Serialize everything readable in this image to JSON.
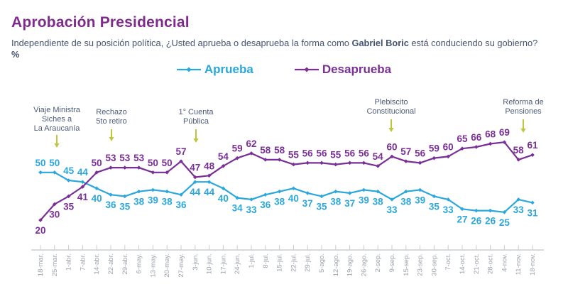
{
  "header": {
    "title": "Aprobación Presidencial",
    "subtitle": {
      "prefix": "Independiente de su posición política, ¿Usted aprueba o desaprueba la forma como ",
      "bold_name": "Gabriel Boric",
      "middle": " está conduciendo su gobierno? ",
      "percent_bold": "%"
    }
  },
  "colors": {
    "aprueba": "#2ba7dc",
    "desaprueba": "#7a2f96",
    "title": "#7f2a8d",
    "subtitle_text": "#44536e",
    "annotation_text": "#4d5c75",
    "arrow": "#bcc73e",
    "axis": "#c9cdd2",
    "axis_label": "#9ba2ac"
  },
  "chart_data": {
    "type": "line",
    "x": [
      "18-mar.",
      "25-mar.",
      "1-abr.",
      "7-abr.",
      "14-abr.",
      "22-abr.",
      "29-abr.",
      "6-may.",
      "13-may.",
      "20-may.",
      "27-may.",
      "3-jun.",
      "10-jun.",
      "17-jun.",
      "24-jun.",
      "1-jul.",
      "8-jul.",
      "15-jul.",
      "22-jul.",
      "29-jul.",
      "5-ago.",
      "12-ago.",
      "19-ago.",
      "26-ago.",
      "2-sep.",
      "9-sep.",
      "15-sep.",
      "23-sep.",
      "30-sep.",
      "7-oct.",
      "14-oct.",
      "21-oct.",
      "28-oct.",
      "4-nov.",
      "11-nov.",
      "18-nov."
    ],
    "series": [
      {
        "name": "Aprueba",
        "color": "#2ba7dc",
        "values": [
          50,
          50,
          45,
          44,
          40,
          36,
          35,
          38,
          39,
          38,
          36,
          44,
          44,
          40,
          34,
          33,
          36,
          38,
          40,
          37,
          35,
          38,
          37,
          39,
          38,
          33,
          38,
          39,
          35,
          33,
          27,
          26,
          26,
          25,
          33,
          31
        ]
      },
      {
        "name": "Desaprueba",
        "color": "#7a2f96",
        "values": [
          20,
          30,
          35,
          41,
          50,
          53,
          53,
          53,
          50,
          50,
          57,
          47,
          48,
          54,
          59,
          62,
          58,
          58,
          55,
          56,
          56,
          55,
          56,
          56,
          54,
          60,
          57,
          56,
          59,
          60,
          65,
          66,
          68,
          69,
          58,
          61
        ]
      }
    ],
    "ylim": [
      20,
      70
    ],
    "grid": false,
    "legend_position": "top-center",
    "annotations": [
      {
        "lines": [
          "Viaje Ministra",
          "Siches a",
          "La Araucanía"
        ],
        "x": 80,
        "text_top": 148,
        "arrow_from": 190,
        "arrow_to": 208
      },
      {
        "lines": [
          "Rechazo",
          "5to retiro"
        ],
        "x": 157,
        "text_top": 151,
        "arrow_from": 182,
        "arrow_to": 199
      },
      {
        "lines": [
          "1° Cuenta",
          "Pública"
        ],
        "x": 276,
        "text_top": 151,
        "arrow_from": 182,
        "arrow_to": 201
      },
      {
        "lines": [
          "Plebiscito",
          "Constitucional"
        ],
        "x": 551,
        "text_top": 137,
        "arrow_from": 168,
        "arrow_to": 186
      },
      {
        "lines": [
          "Reforma de",
          "Pensiones"
        ],
        "x": 737,
        "text_top": 137,
        "arrow_from": 168,
        "arrow_to": 187
      }
    ]
  }
}
